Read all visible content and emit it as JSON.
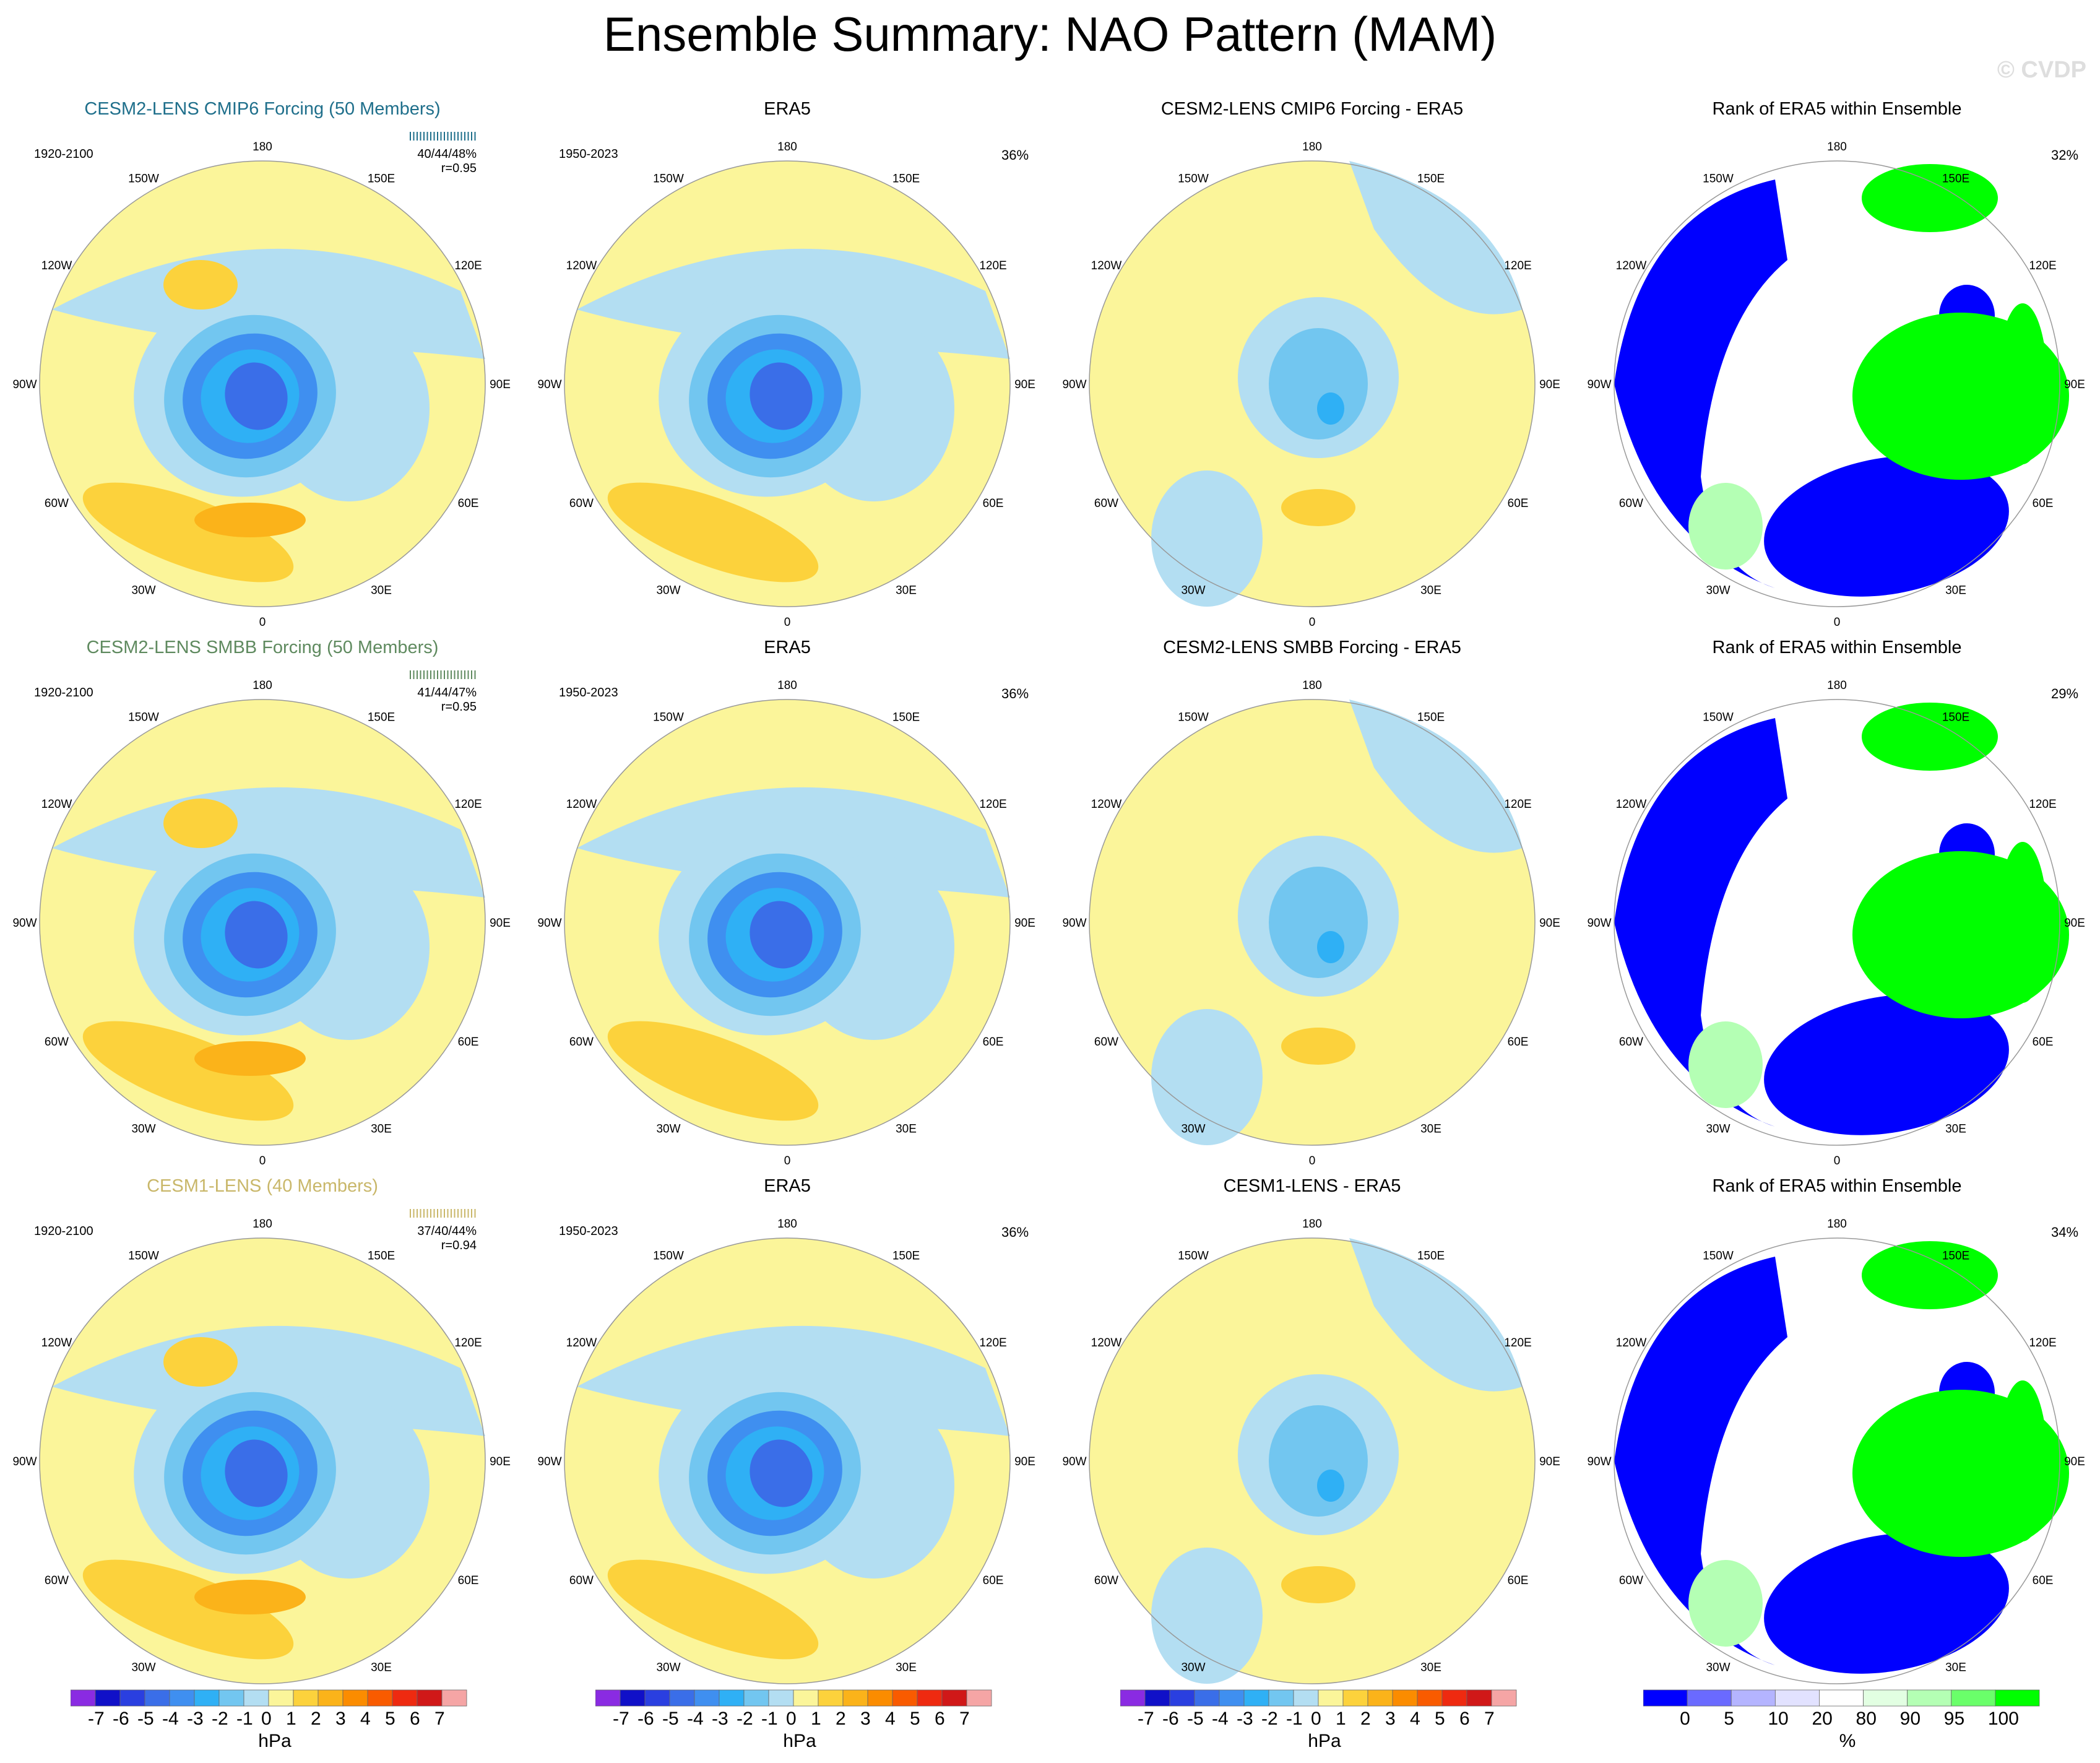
{
  "title": "Ensemble Summary: NAO Pattern (MAM)",
  "watermark": "© CVDP",
  "lon_labels": [
    "180",
    "150E",
    "120E",
    "90E",
    "60E",
    "30E",
    "0",
    "30W",
    "60W",
    "90W",
    "120W",
    "150W"
  ],
  "rows": [
    {
      "cols": [
        {
          "title": "CESM2-LENS CMIP6 Forcing (50 Members)",
          "title_color": "#1f6f8b",
          "period": "1920-2100",
          "stats_line1": "40/44/48%",
          "stats_line2": "r=0.95",
          "rug_color": "#1f6f8b",
          "pattern": "ens1"
        },
        {
          "title": "ERA5",
          "period": "1950-2023",
          "pct": "36%",
          "pattern": "obs"
        },
        {
          "title": "CESM2-LENS CMIP6 Forcing - ERA5",
          "pattern": "diff1"
        },
        {
          "title": "Rank of ERA5 within Ensemble",
          "pct": "32%",
          "pattern": "rank1"
        }
      ]
    },
    {
      "cols": [
        {
          "title": "CESM2-LENS SMBB Forcing (50 Members)",
          "title_color": "#5f8a5f",
          "period": "1920-2100",
          "stats_line1": "41/44/47%",
          "stats_line2": "r=0.95",
          "rug_color": "#5f8a5f",
          "pattern": "ens2"
        },
        {
          "title": "ERA5",
          "period": "1950-2023",
          "pct": "36%",
          "pattern": "obs"
        },
        {
          "title": "CESM2-LENS SMBB Forcing - ERA5",
          "pattern": "diff2"
        },
        {
          "title": "Rank of ERA5 within Ensemble",
          "pct": "29%",
          "pattern": "rank2"
        }
      ]
    },
    {
      "cols": [
        {
          "title": "CESM1-LENS (40 Members)",
          "title_color": "#c9b76a",
          "period": "1920-2100",
          "stats_line1": "37/40/44%",
          "stats_line2": "r=0.94",
          "rug_color": "#c9b76a",
          "pattern": "ens3"
        },
        {
          "title": "ERA5",
          "period": "1950-2023",
          "pct": "36%",
          "pattern": "obs"
        },
        {
          "title": "CESM1-LENS - ERA5",
          "pattern": "diff3"
        },
        {
          "title": "Rank of ERA5 within Ensemble",
          "pct": "34%",
          "pattern": "rank3"
        }
      ]
    }
  ],
  "colorbars": [
    {
      "units": "hPa",
      "ticks": [
        "-7",
        "-6",
        "-5",
        "-4",
        "-3",
        "-2",
        "-1",
        "0",
        "1",
        "2",
        "3",
        "4",
        "5",
        "6",
        "7"
      ],
      "colors": [
        "#8a2be2",
        "#1010c8",
        "#2a3fe0",
        "#3a6ee8",
        "#3f8ff0",
        "#2fb0f5",
        "#72c6f0",
        "#b3def2",
        "#fbf59a",
        "#fcd23c",
        "#fbb31a",
        "#fb8c00",
        "#f95b00",
        "#ee2a10",
        "#d01818",
        "#f5a5a5"
      ]
    },
    {
      "units": "hPa",
      "ticks": [
        "-7",
        "-6",
        "-5",
        "-4",
        "-3",
        "-2",
        "-1",
        "0",
        "1",
        "2",
        "3",
        "4",
        "5",
        "6",
        "7"
      ],
      "colors": [
        "#8a2be2",
        "#1010c8",
        "#2a3fe0",
        "#3a6ee8",
        "#3f8ff0",
        "#2fb0f5",
        "#72c6f0",
        "#b3def2",
        "#fbf59a",
        "#fcd23c",
        "#fbb31a",
        "#fb8c00",
        "#f95b00",
        "#ee2a10",
        "#d01818",
        "#f5a5a5"
      ]
    },
    {
      "units": "hPa",
      "ticks": [
        "-7",
        "-6",
        "-5",
        "-4",
        "-3",
        "-2",
        "-1",
        "0",
        "1",
        "2",
        "3",
        "4",
        "5",
        "6",
        "7"
      ],
      "colors": [
        "#8a2be2",
        "#1010c8",
        "#2a3fe0",
        "#3a6ee8",
        "#3f8ff0",
        "#2fb0f5",
        "#72c6f0",
        "#b3def2",
        "#fbf59a",
        "#fcd23c",
        "#fbb31a",
        "#fb8c00",
        "#f95b00",
        "#ee2a10",
        "#d01818",
        "#f5a5a5"
      ]
    },
    {
      "units": "%",
      "ticks": [
        "0",
        "5",
        "10",
        "20",
        "80",
        "90",
        "95",
        "100"
      ],
      "colors": [
        "#0000ff",
        "#6a6aff",
        "#b4b4ff",
        "#e2e2ff",
        "#ffffff",
        "#e2ffe2",
        "#b4ffb4",
        "#6aff6a",
        "#00ff00"
      ]
    }
  ]
}
